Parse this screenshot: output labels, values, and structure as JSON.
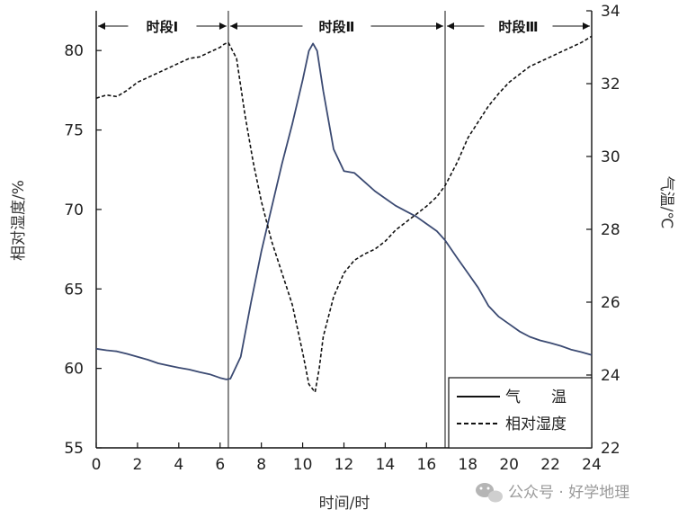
{
  "chart_data": {
    "type": "line",
    "xlabel": "时间/时",
    "ylabel_left": "相对湿度/%",
    "ylabel_right": "气温/℃",
    "x_ticks": [
      "0",
      "2",
      "4",
      "6",
      "8",
      "10",
      "12",
      "14",
      "16",
      "18",
      "20",
      "22",
      "24"
    ],
    "y_left_ticks": [
      "55",
      "60",
      "65",
      "70",
      "75",
      "80"
    ],
    "y_right_ticks": [
      "22",
      "24",
      "26",
      "28",
      "30",
      "32",
      "34"
    ],
    "xlim": [
      0,
      24
    ],
    "ylim_left": [
      55,
      82.5
    ],
    "ylim_right": [
      22,
      34
    ],
    "period_boundaries": [
      6.4,
      16.9
    ],
    "periods": [
      {
        "label": "时段Ⅰ",
        "start": 0,
        "end": 6.4
      },
      {
        "label": "时段Ⅱ",
        "start": 6.4,
        "end": 16.9
      },
      {
        "label": "时段Ⅲ",
        "start": 16.9,
        "end": 24
      }
    ],
    "series": [
      {
        "name": "气　　温",
        "axis": "right",
        "style": "solid",
        "color": "#3b4a72",
        "x": [
          0,
          0.5,
          1,
          1.5,
          2,
          2.5,
          3,
          3.5,
          4,
          4.5,
          5,
          5.5,
          6,
          6.3,
          6.5,
          7,
          7.5,
          8,
          8.5,
          9,
          9.5,
          10,
          10.3,
          10.5,
          10.7,
          11,
          11.5,
          12,
          12.5,
          13,
          13.5,
          14,
          14.5,
          15,
          15.5,
          16,
          16.5,
          16.9,
          17.5,
          18,
          18.5,
          19,
          19.5,
          20,
          20.5,
          21,
          21.5,
          22,
          22.5,
          23,
          23.5,
          24
        ],
        "values": [
          24.72,
          24.68,
          24.65,
          24.58,
          24.5,
          24.42,
          24.32,
          24.26,
          24.2,
          24.15,
          24.08,
          24.02,
          23.92,
          23.88,
          23.9,
          24.5,
          26.0,
          27.4,
          28.6,
          29.8,
          30.9,
          32.1,
          32.9,
          33.1,
          32.9,
          31.8,
          30.2,
          29.6,
          29.55,
          29.3,
          29.05,
          28.85,
          28.65,
          28.5,
          28.35,
          28.15,
          27.95,
          27.7,
          27.2,
          26.8,
          26.4,
          25.9,
          25.6,
          25.4,
          25.2,
          25.05,
          24.95,
          24.88,
          24.8,
          24.7,
          24.63,
          24.55
        ]
      },
      {
        "name": "相对湿度",
        "axis": "left",
        "style": "dashed",
        "color": "#111111",
        "x": [
          0,
          0.5,
          1,
          1.5,
          2,
          2.5,
          3,
          3.5,
          4,
          4.5,
          5,
          5.5,
          6,
          6.2,
          6.4,
          6.8,
          7.2,
          7.6,
          8,
          8.5,
          9,
          9.5,
          10,
          10.3,
          10.6,
          10.8,
          11,
          11.5,
          12,
          12.5,
          13,
          13.5,
          14,
          14.5,
          15,
          15.5,
          16,
          16.5,
          16.9,
          17.5,
          18,
          18.5,
          19,
          19.5,
          20,
          20.5,
          21,
          21.5,
          22,
          22.5,
          23,
          23.5,
          24
        ],
        "values": [
          77.0,
          77.2,
          77.1,
          77.5,
          78.0,
          78.3,
          78.6,
          78.9,
          79.2,
          79.5,
          79.6,
          79.9,
          80.2,
          80.4,
          80.5,
          79.5,
          76.0,
          73.0,
          70.5,
          68.0,
          66.0,
          64.0,
          61.0,
          59.0,
          58.5,
          60.0,
          62.0,
          64.5,
          66.0,
          66.8,
          67.2,
          67.5,
          68.0,
          68.7,
          69.2,
          69.7,
          70.2,
          70.8,
          71.5,
          73.0,
          74.5,
          75.5,
          76.5,
          77.3,
          78.0,
          78.5,
          79.0,
          79.3,
          79.6,
          79.9,
          80.2,
          80.5,
          80.9
        ]
      }
    ]
  },
  "legend": {
    "items": [
      {
        "label": "气　　温",
        "style": "solid"
      },
      {
        "label": "相对湿度",
        "style": "dashed"
      }
    ]
  },
  "watermark": {
    "text": "公众号 · 好学地理",
    "icon": "wechat-icon"
  }
}
